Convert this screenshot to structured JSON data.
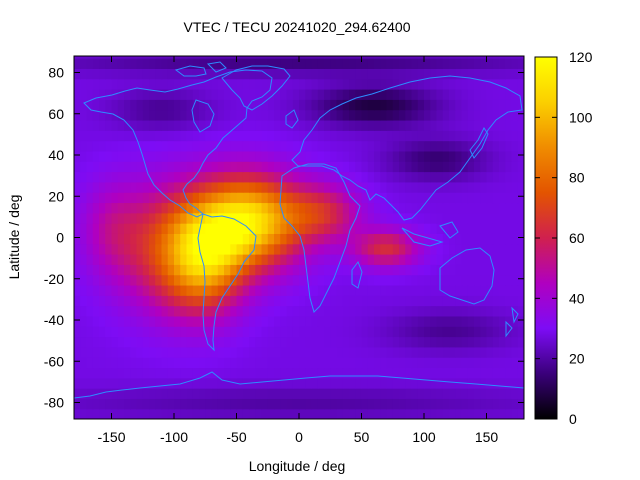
{
  "chart_data": {
    "type": "heatmap",
    "title": "VTEC / TECU 20241020_294.62400",
    "xlabel": "Longitude / deg",
    "ylabel": "Latitude / deg",
    "xlim": [
      -180,
      180
    ],
    "ylim": [
      -88,
      88
    ],
    "x_ticks": [
      -150,
      -100,
      -50,
      0,
      50,
      100,
      150
    ],
    "y_ticks": [
      -80,
      -60,
      -40,
      -20,
      0,
      20,
      40,
      60,
      80
    ],
    "colorbar": {
      "range": [
        0,
        120
      ],
      "ticks": [
        0,
        20,
        40,
        60,
        80,
        100,
        120
      ],
      "palette": [
        "#000000",
        "#3a007a",
        "#7d0cf5",
        "#b000c0",
        "#d0204f",
        "#e35400",
        "#f08c00",
        "#fbcf00",
        "#ffff00"
      ]
    },
    "peaks": [
      {
        "lon": -45,
        "lat": 10,
        "value": 112
      },
      {
        "lon": -70,
        "lat": -10,
        "value": 108
      },
      {
        "lon": 20,
        "lat": 10,
        "value": 80
      },
      {
        "lon": 65,
        "lat": -5,
        "value": 72
      },
      {
        "lon": -140,
        "lat": 0,
        "value": 55
      }
    ],
    "background_value": 28,
    "lows": [
      {
        "lon": 60,
        "lat": 62,
        "value": 8
      },
      {
        "lon": 110,
        "lat": 40,
        "value": 12
      },
      {
        "lon": 120,
        "lat": -45,
        "value": 18
      },
      {
        "lon": -100,
        "lat": 62,
        "value": 20
      }
    ],
    "overlay": "coastlines"
  }
}
